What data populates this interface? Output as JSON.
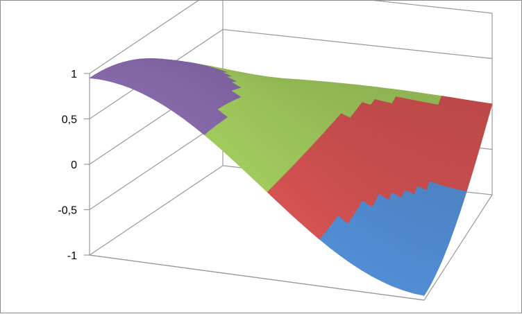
{
  "chart_data": {
    "type": "surface",
    "title": "",
    "z_axis": {
      "range": [
        -1,
        1
      ],
      "ticks": [
        -1,
        -0.5,
        0,
        0.5,
        1
      ],
      "tick_labels": [
        "-1",
        "-0,5",
        "0",
        "0,5",
        "1"
      ]
    },
    "bands": [
      {
        "range": [
          -1,
          -0.5
        ],
        "color": "#4f88cc"
      },
      {
        "range": [
          -0.5,
          0
        ],
        "color": "#cc4f4f"
      },
      {
        "range": [
          0,
          0.5
        ],
        "color": "#9bc35a"
      },
      {
        "range": [
          0.5,
          1
        ],
        "color": "#8064a2"
      }
    ],
    "gridlines": true,
    "legend": "none"
  }
}
